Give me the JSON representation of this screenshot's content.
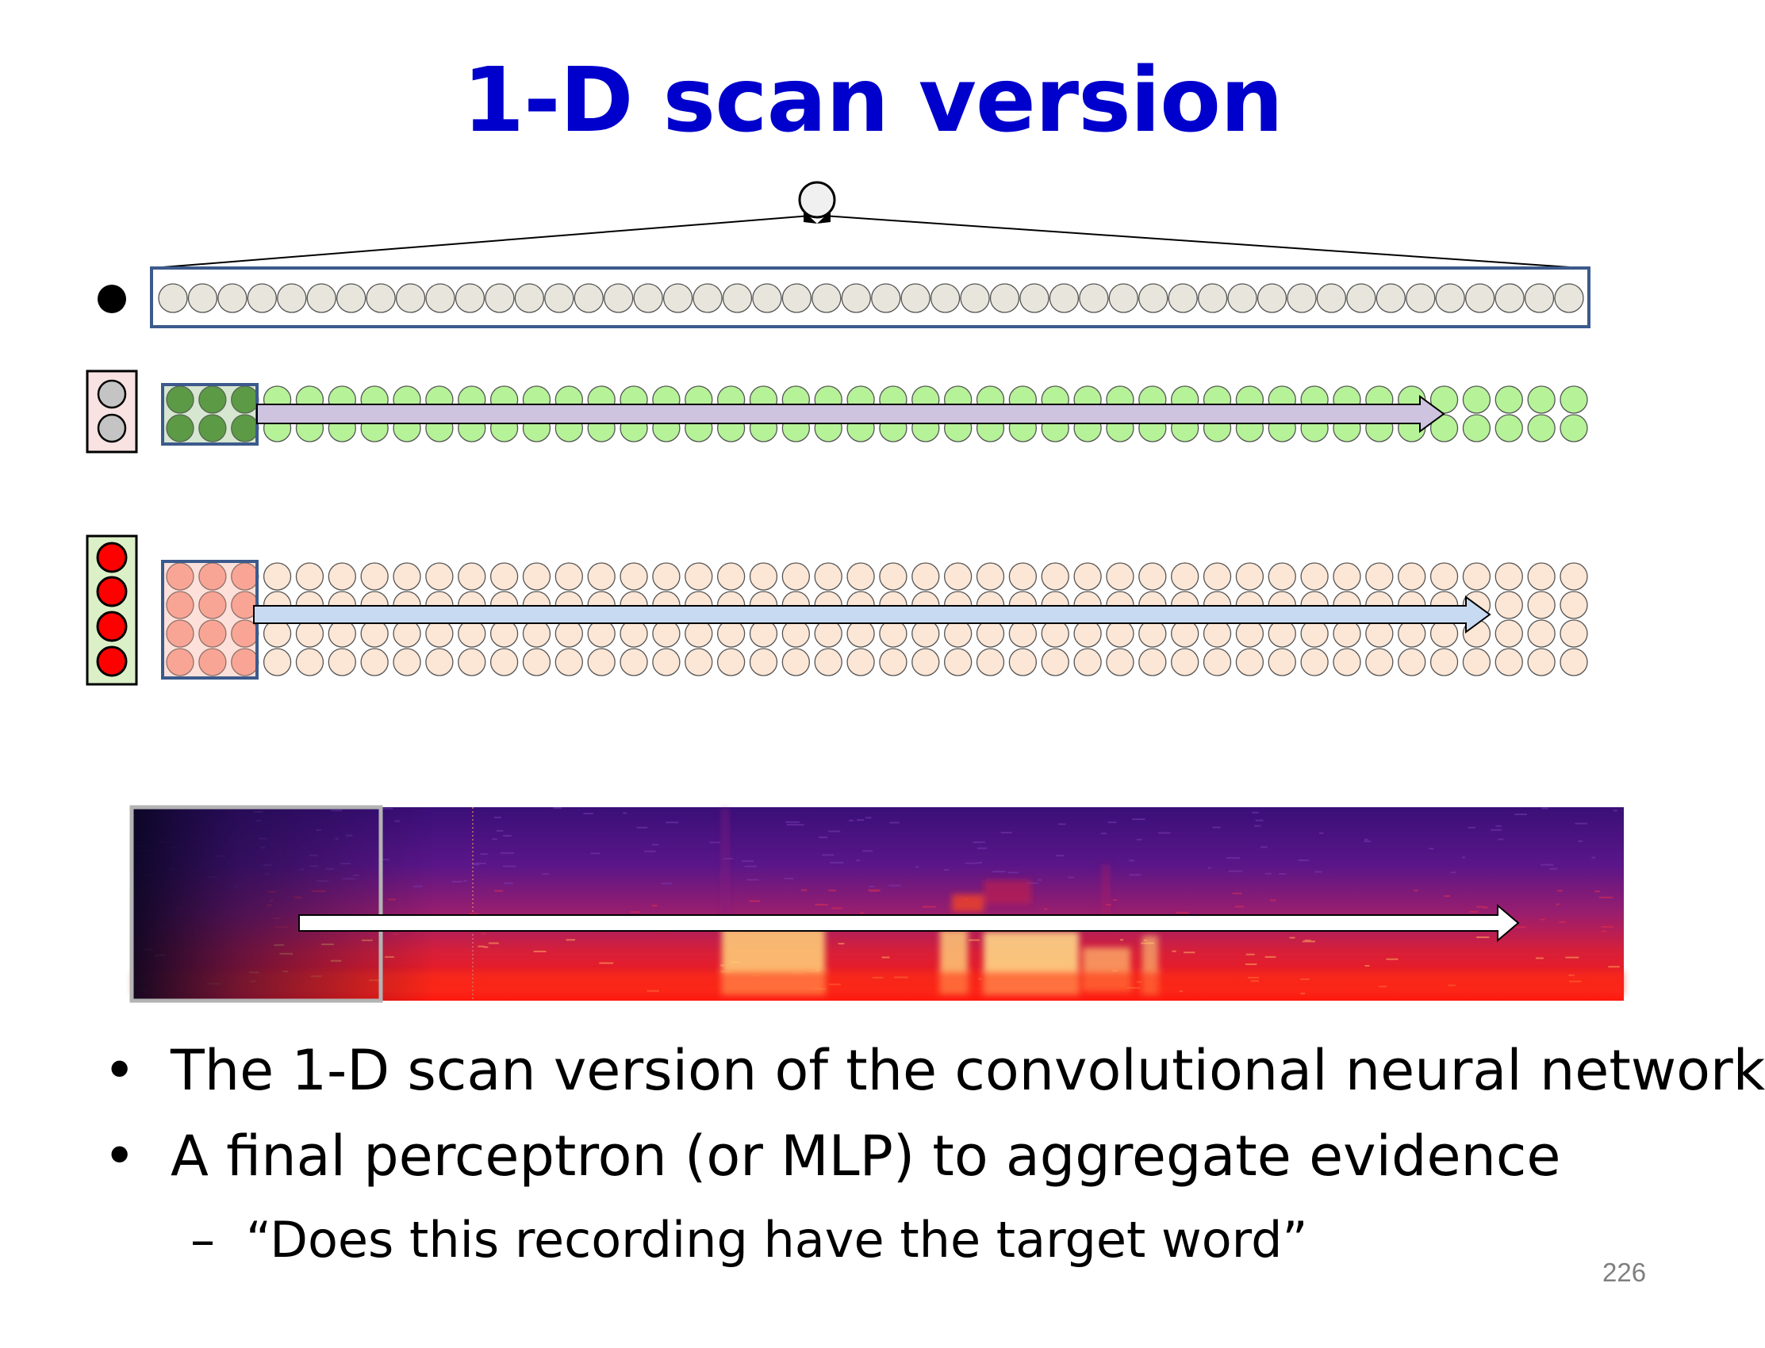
{
  "slide": {
    "title": "1-D scan version",
    "page_number": "226"
  },
  "bullets": [
    {
      "mark": "•",
      "text": "The 1-D scan version of the convolutional neural network"
    },
    {
      "mark": "•",
      "text": "A final perceptron (or MLP) to aggregate evidence"
    }
  ],
  "sub_bullet": {
    "mark": "–",
    "text": "“Does this recording have the target word”"
  },
  "diagram": {
    "layers": [
      {
        "name": "top-layer",
        "rows": 1,
        "columns": 48,
        "fill": "#e8e6dc"
      },
      {
        "name": "green-layer",
        "rows": 2,
        "columns": 44,
        "fill": "#b6f298",
        "window_fill": "#5d9a46",
        "arrow_fill": "#cfc4e0"
      },
      {
        "name": "peach-layer",
        "rows": 4,
        "columns": 44,
        "fill": "#fce6d6",
        "window_fill": "#f9a596",
        "arrow_fill": "#c7daf2"
      }
    ],
    "filter_icons": [
      {
        "name": "green-filter",
        "units": 2,
        "unit_fill": "#c4c4c4",
        "box_fill": "#f8e2e2"
      },
      {
        "name": "peach-filter",
        "units": 4,
        "unit_fill": "#ff0000",
        "box_fill": "#dcf0c8"
      }
    ],
    "colors": {
      "outline_blue": "#3c5a8c",
      "spectrogram_box": "#b3b3b3"
    }
  }
}
